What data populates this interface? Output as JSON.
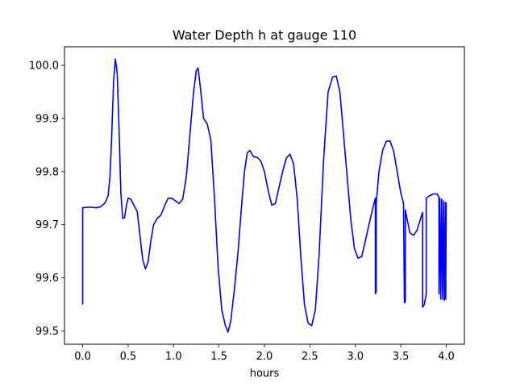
{
  "chart_data": {
    "type": "line",
    "title": "Water Depth h at gauge 110",
    "xlabel": "hours",
    "ylabel": "",
    "xlim": [
      -0.2,
      4.2
    ],
    "ylim": [
      99.475,
      100.035
    ],
    "x_ticks": [
      0.0,
      0.5,
      1.0,
      1.5,
      2.0,
      2.5,
      3.0,
      3.5,
      4.0
    ],
    "x_tick_labels": [
      "0.0",
      "0.5",
      "1.0",
      "1.5",
      "2.0",
      "2.5",
      "3.0",
      "3.5",
      "4.0"
    ],
    "y_ticks": [
      99.5,
      99.6,
      99.7,
      99.8,
      99.9,
      100.0
    ],
    "y_tick_labels": [
      "99.5",
      "99.6",
      "99.7",
      "99.8",
      "99.9",
      "100.0"
    ],
    "grid": false,
    "line_color": "#0000ff",
    "series": [
      {
        "points": [
          [
            0.0,
            99.55
          ],
          [
            0.0,
            99.732
          ],
          [
            0.05,
            99.733
          ],
          [
            0.1,
            99.733
          ],
          [
            0.15,
            99.732
          ],
          [
            0.2,
            99.734
          ],
          [
            0.25,
            99.742
          ],
          [
            0.28,
            99.755
          ],
          [
            0.3,
            99.79
          ],
          [
            0.32,
            99.87
          ],
          [
            0.34,
            99.97
          ],
          [
            0.36,
            100.012
          ],
          [
            0.38,
            99.985
          ],
          [
            0.4,
            99.88
          ],
          [
            0.42,
            99.76
          ],
          [
            0.44,
            99.712
          ],
          [
            0.46,
            99.713
          ],
          [
            0.48,
            99.735
          ],
          [
            0.5,
            99.75
          ],
          [
            0.53,
            99.748
          ],
          [
            0.56,
            99.738
          ],
          [
            0.6,
            99.725
          ],
          [
            0.63,
            99.68
          ],
          [
            0.66,
            99.635
          ],
          [
            0.69,
            99.617
          ],
          [
            0.72,
            99.63
          ],
          [
            0.75,
            99.67
          ],
          [
            0.78,
            99.7
          ],
          [
            0.82,
            99.712
          ],
          [
            0.86,
            99.718
          ],
          [
            0.9,
            99.735
          ],
          [
            0.94,
            99.75
          ],
          [
            0.98,
            99.75
          ],
          [
            1.02,
            99.745
          ],
          [
            1.06,
            99.74
          ],
          [
            1.1,
            99.748
          ],
          [
            1.14,
            99.79
          ],
          [
            1.18,
            99.87
          ],
          [
            1.22,
            99.95
          ],
          [
            1.25,
            99.99
          ],
          [
            1.27,
            99.995
          ],
          [
            1.3,
            99.95
          ],
          [
            1.33,
            99.9
          ],
          [
            1.37,
            99.89
          ],
          [
            1.41,
            99.86
          ],
          [
            1.45,
            99.75
          ],
          [
            1.49,
            99.62
          ],
          [
            1.53,
            99.54
          ],
          [
            1.57,
            99.51
          ],
          [
            1.6,
            99.498
          ],
          [
            1.63,
            99.52
          ],
          [
            1.67,
            99.58
          ],
          [
            1.71,
            99.65
          ],
          [
            1.75,
            99.74
          ],
          [
            1.78,
            99.8
          ],
          [
            1.81,
            99.835
          ],
          [
            1.84,
            99.84
          ],
          [
            1.88,
            99.828
          ],
          [
            1.92,
            99.827
          ],
          [
            1.96,
            99.82
          ],
          [
            2.0,
            99.8
          ],
          [
            2.04,
            99.765
          ],
          [
            2.08,
            99.737
          ],
          [
            2.12,
            99.74
          ],
          [
            2.16,
            99.77
          ],
          [
            2.2,
            99.8
          ],
          [
            2.24,
            99.825
          ],
          [
            2.28,
            99.833
          ],
          [
            2.32,
            99.815
          ],
          [
            2.36,
            99.75
          ],
          [
            2.4,
            99.64
          ],
          [
            2.44,
            99.55
          ],
          [
            2.48,
            99.515
          ],
          [
            2.52,
            99.51
          ],
          [
            2.56,
            99.54
          ],
          [
            2.6,
            99.64
          ],
          [
            2.65,
            99.82
          ],
          [
            2.7,
            99.95
          ],
          [
            2.75,
            99.978
          ],
          [
            2.79,
            99.98
          ],
          [
            2.83,
            99.95
          ],
          [
            2.87,
            99.87
          ],
          [
            2.91,
            99.79
          ],
          [
            2.95,
            99.71
          ],
          [
            2.99,
            99.655
          ],
          [
            3.03,
            99.637
          ],
          [
            3.07,
            99.64
          ],
          [
            3.11,
            99.67
          ],
          [
            3.15,
            99.7
          ],
          [
            3.19,
            99.73
          ],
          [
            3.22,
            99.75
          ],
          [
            3.22,
            99.57
          ],
          [
            3.23,
            99.575
          ],
          [
            3.23,
            99.74
          ],
          [
            3.26,
            99.8
          ],
          [
            3.3,
            99.84
          ],
          [
            3.34,
            99.857
          ],
          [
            3.38,
            99.858
          ],
          [
            3.42,
            99.84
          ],
          [
            3.46,
            99.8
          ],
          [
            3.5,
            99.76
          ],
          [
            3.53,
            99.74
          ],
          [
            3.54,
            99.553
          ],
          [
            3.55,
            99.555
          ],
          [
            3.55,
            99.728
          ],
          [
            3.57,
            99.71
          ],
          [
            3.6,
            99.685
          ],
          [
            3.64,
            99.68
          ],
          [
            3.68,
            99.69
          ],
          [
            3.72,
            99.713
          ],
          [
            3.74,
            99.723
          ],
          [
            3.74,
            99.545
          ],
          [
            3.76,
            99.55
          ],
          [
            3.78,
            99.57
          ],
          [
            3.78,
            99.75
          ],
          [
            3.82,
            99.755
          ],
          [
            3.86,
            99.758
          ],
          [
            3.9,
            99.758
          ],
          [
            3.92,
            99.752
          ],
          [
            3.92,
            99.57
          ],
          [
            3.93,
            99.75
          ],
          [
            3.94,
            99.56
          ],
          [
            3.95,
            99.748
          ],
          [
            3.96,
            99.56
          ],
          [
            3.97,
            99.745
          ],
          [
            3.98,
            99.558
          ],
          [
            3.99,
            99.742
          ],
          [
            3.995,
            99.56
          ],
          [
            4.0,
            99.742
          ]
        ]
      }
    ]
  }
}
